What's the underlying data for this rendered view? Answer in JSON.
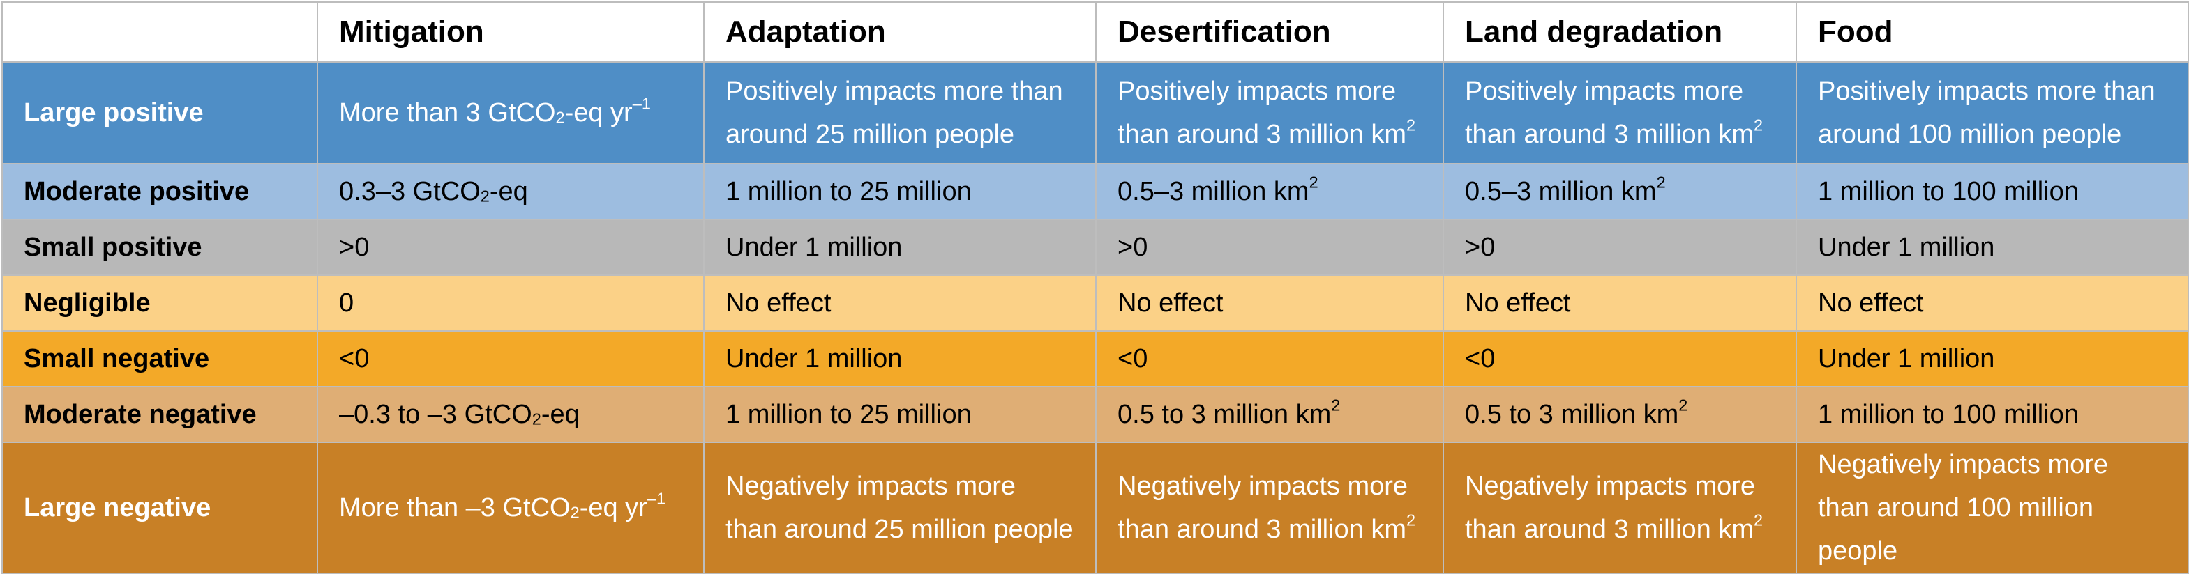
{
  "header": [
    "",
    "Mitigation",
    "Adaptation",
    "Desertification",
    "Land degradation",
    "Food"
  ],
  "rows": [
    {
      "label": "Large positive",
      "color": "#4f8ec6",
      "cells": [
        {
          "pre": "More than 3 GtCO",
          "sub": "2",
          "mid": "-eq yr",
          "sup": "–1"
        },
        {
          "text": "Positively impacts more than around 25 million people"
        },
        {
          "pre": "Positively impacts more than around 3 million km",
          "sup": "2"
        },
        {
          "pre": "Positively impacts more than around 3 million km",
          "sup": "2"
        },
        {
          "text": "Positively impacts more than around 100 million people"
        }
      ]
    },
    {
      "label": "Moderate positive",
      "color": "#9dbde0",
      "cells": [
        {
          "pre": "0.3–3 GtCO",
          "sub": "2",
          "mid": "-eq"
        },
        {
          "text": "1 million to 25 million"
        },
        {
          "pre": "0.5–3 million km",
          "sup": "2"
        },
        {
          "pre": "0.5–3 million km",
          "sup": "2"
        },
        {
          "text": "1 million to 100 million"
        }
      ]
    },
    {
      "label": "Small positive",
      "color": "#b8b8b8",
      "cells": [
        {
          "text": ">0"
        },
        {
          "text": "Under 1 million"
        },
        {
          "text": ">0"
        },
        {
          "text": ">0"
        },
        {
          "text": "Under 1 million"
        }
      ]
    },
    {
      "label": "Negligible",
      "color": "#fbd187",
      "cells": [
        {
          "text": "0"
        },
        {
          "text": "No effect"
        },
        {
          "text": "No effect"
        },
        {
          "text": "No effect"
        },
        {
          "text": "No effect"
        }
      ]
    },
    {
      "label": "Small negative",
      "color": "#f3a928",
      "cells": [
        {
          "text": "<0"
        },
        {
          "text": "Under 1 million"
        },
        {
          "text": "<0"
        },
        {
          "text": "<0"
        },
        {
          "text": "Under 1 million"
        }
      ]
    },
    {
      "label": "Moderate negative",
      "color": "#dfae75",
      "cells": [
        {
          "pre": "–0.3 to –3 GtCO",
          "sub": "2",
          "mid": "-eq"
        },
        {
          "text": "1 million to 25 million"
        },
        {
          "pre": "0.5 to 3 million km",
          "sup": "2"
        },
        {
          "pre": "0.5 to 3 million km",
          "sup": "2"
        },
        {
          "text": "1 million to 100 million"
        }
      ]
    },
    {
      "label": "Large negative",
      "color": "#c88026",
      "cells": [
        {
          "pre": "More than –3 GtCO",
          "sub": "2",
          "mid": "-eq yr",
          "sup": "–1"
        },
        {
          "text": "Negatively impacts more than around 25 million people"
        },
        {
          "pre": "Negatively impacts more than around 3 million km",
          "sup": "2"
        },
        {
          "pre": "Negatively impacts more than around 3 million km",
          "sup": "2"
        },
        {
          "text": "Negatively impacts more than around 100 million people"
        }
      ]
    }
  ]
}
